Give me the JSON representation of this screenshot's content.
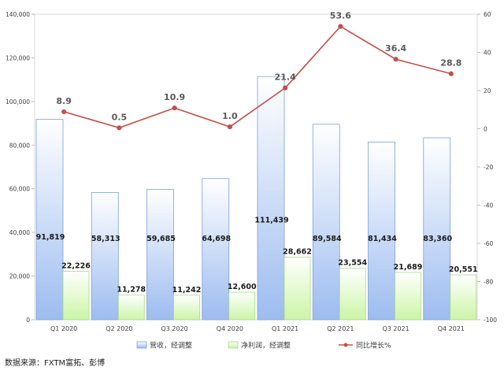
{
  "chart_data": {
    "type": "bar",
    "categories": [
      "Q1 2020",
      "Q2 2020",
      "Q3 2020",
      "Q4 2020",
      "Q1 2021",
      "Q2 2021",
      "Q3 2021",
      "Q4 2021"
    ],
    "series": [
      {
        "name": "营收，经调整",
        "kind": "bar",
        "axis": "left",
        "values": [
          91819,
          58313,
          59685,
          64698,
          111439,
          89584,
          81434,
          83360
        ],
        "labels": [
          "91,819",
          "58,313",
          "59,685",
          "64,698",
          "111,439",
          "89,584",
          "81,434",
          "83,360"
        ],
        "color": "#9dbcf0"
      },
      {
        "name": "净利润，经调整",
        "kind": "bar",
        "axis": "left",
        "values": [
          22226,
          11278,
          11242,
          12600,
          28662,
          23554,
          21689,
          20551
        ],
        "labels": [
          "22,226",
          "11,278",
          "11,242",
          "12,600",
          "28,662",
          "23,554",
          "21,689",
          "20,551"
        ],
        "color": "#ccf5a6"
      },
      {
        "name": "同比增长%",
        "kind": "line",
        "axis": "right",
        "values": [
          8.9,
          0.5,
          10.9,
          1.0,
          21.4,
          53.6,
          36.4,
          28.8
        ],
        "labels": [
          "8.9",
          "0.5",
          "10.9",
          "1.0",
          "21.4",
          "53.6",
          "36.4",
          "28.8"
        ],
        "color": "#c0504d"
      }
    ],
    "y_left": {
      "range": [
        0,
        140000
      ],
      "ticks": [
        "0",
        "20,000",
        "40,000",
        "60,000",
        "80,000",
        "100,000",
        "120,000",
        "140,000"
      ]
    },
    "y_right": {
      "range": [
        -100,
        60
      ],
      "ticks": [
        "-100",
        "-80",
        "-60",
        "-40",
        "-20",
        "0",
        "20",
        "40",
        "60"
      ]
    },
    "legend_position": "bottom",
    "grid": true
  },
  "source_note": "数据来源：FXTM富拓、彭博"
}
